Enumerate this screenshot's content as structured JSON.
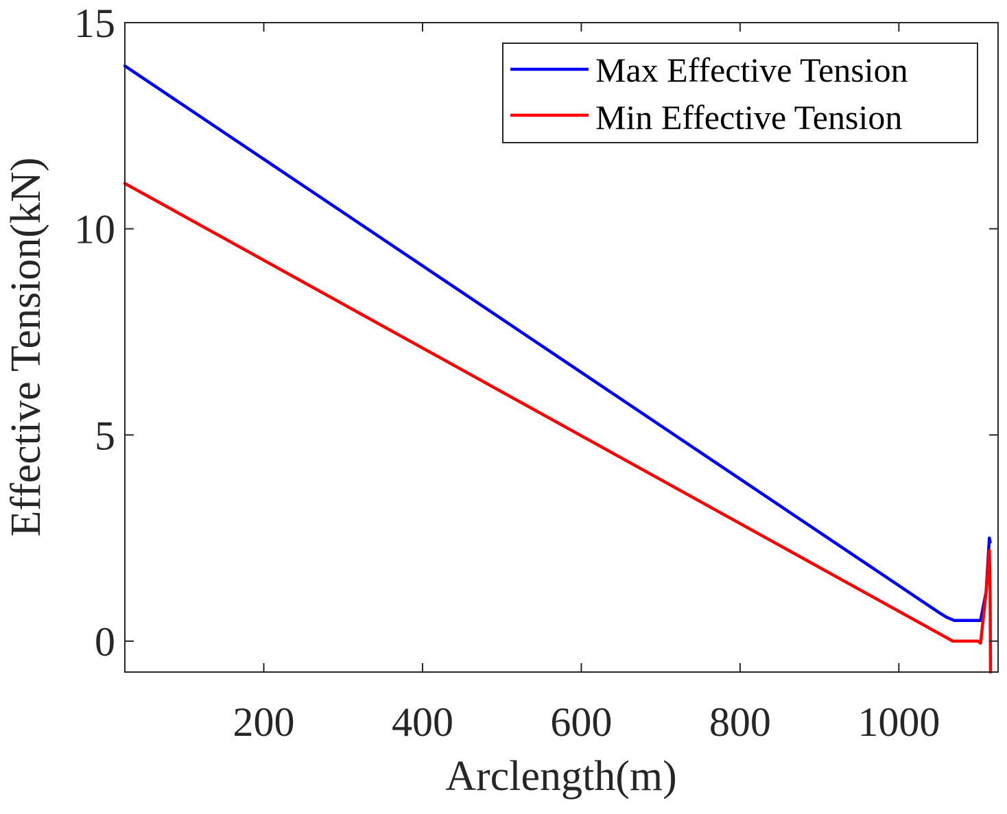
{
  "chart_data": {
    "type": "line",
    "title": "",
    "xlabel": "Arclength(m)",
    "ylabel": "Effective Tension(kN)",
    "xlim": [
      25,
      1125
    ],
    "ylim": [
      -0.75,
      15
    ],
    "xticks": [
      200,
      400,
      600,
      800,
      1000
    ],
    "yticks": [
      0,
      5,
      10,
      15
    ],
    "xtick_labels": [
      "200",
      "400",
      "600",
      "800",
      "1000"
    ],
    "ytick_labels": [
      "0",
      "5",
      "10",
      "15"
    ],
    "grid": false,
    "legend_position": "top-right",
    "series": [
      {
        "name": "Max Effective Tension",
        "color": "#0000ff",
        "x": [
          25,
          1050,
          1060,
          1070,
          1100,
          1103,
          1110,
          1114,
          1115
        ],
        "y": [
          13.95,
          0.7,
          0.58,
          0.5,
          0.5,
          0.5,
          1.2,
          2.5,
          2.4
        ]
      },
      {
        "name": "Min Effective Tension",
        "color": "#ff0000",
        "x": [
          25,
          1068,
          1100,
          1103,
          1110,
          1114,
          1115,
          1115.5
        ],
        "y": [
          11.1,
          0.0,
          0.0,
          -0.05,
          1.2,
          2.2,
          1.2,
          -0.75
        ]
      }
    ]
  }
}
